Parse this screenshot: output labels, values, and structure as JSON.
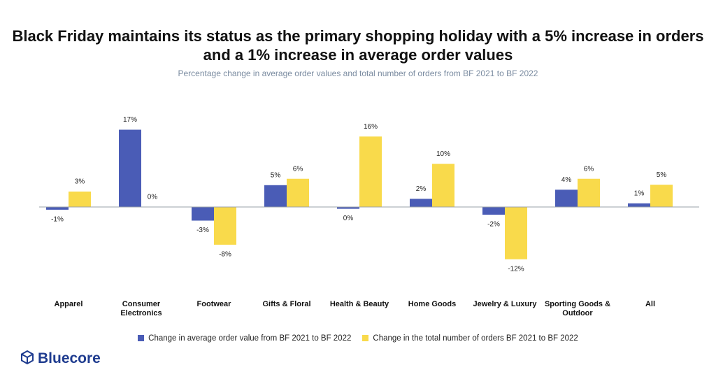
{
  "chart_data": {
    "type": "bar",
    "title": "Black Friday maintains its status as the primary shopping holiday with a 5% increase in orders and a 1% increase in average order values",
    "subtitle": "Percentage change in average order values and total number of orders from BF 2021 to BF 2022",
    "categories": [
      "Apparel",
      "Consumer Electronics",
      "Footwear",
      "Gifts & Floral",
      "Health & Beauty",
      "Home Goods",
      "Jewelry & Luxury",
      "Sporting Goods & Outdoor",
      "All"
    ],
    "series": [
      {
        "name": "Change in average order value from BF 2021 to BF 2022",
        "color": "#4a5cb6",
        "values": [
          -0.6,
          17,
          -3,
          4.8,
          -0.4,
          1.8,
          -1.7,
          3.8,
          0.8
        ],
        "value_labels": [
          "-1%",
          "17%",
          "-3%",
          "5%",
          "0%",
          "2%",
          "-2%",
          "4%",
          "1%"
        ]
      },
      {
        "name": "Change in the total number of orders BF 2021 to BF 2022",
        "color": "#f9da4b",
        "values": [
          3.4,
          0,
          -8.3,
          6.2,
          15.5,
          9.5,
          -11.5,
          6.2,
          4.9
        ],
        "value_labels": [
          "3%",
          "0%",
          "-8%",
          "6%",
          "16%",
          "10%",
          "-12%",
          "6%",
          "5%"
        ]
      }
    ],
    "ylim": [
      -15,
      20
    ],
    "legend": "bottom",
    "brand": "Bluecore"
  }
}
